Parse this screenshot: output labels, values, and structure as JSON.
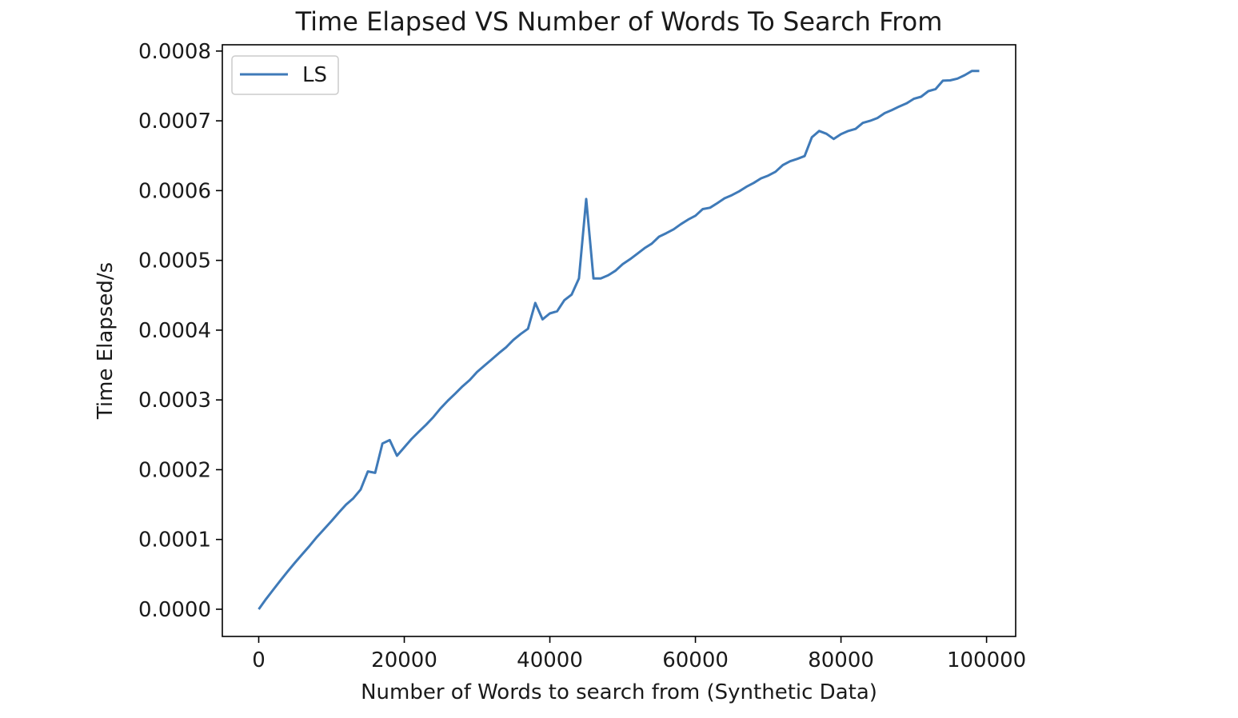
{
  "chart_data": {
    "type": "line",
    "title": "Time Elapsed VS Number of Words To Search From",
    "xlabel": "Number of Words to search from (Synthetic Data)",
    "ylabel": "Time Elapsed/s",
    "xlim": [
      -5000,
      104000
    ],
    "ylim": [
      -3.9e-05,
      0.000809
    ],
    "xticks": [
      0,
      20000,
      40000,
      60000,
      80000,
      100000
    ],
    "xtick_labels": [
      "0",
      "20000",
      "40000",
      "60000",
      "80000",
      "100000"
    ],
    "yticks": [
      0,
      0.0001,
      0.0002,
      0.0003,
      0.0004,
      0.0005,
      0.0006,
      0.0007,
      0.0008
    ],
    "ytick_labels": [
      "0.0000",
      "0.0001",
      "0.0002",
      "0.0003",
      "0.0004",
      "0.0005",
      "0.0006",
      "0.0007",
      "0.0008"
    ],
    "grid": false,
    "legend": {
      "position": "top-left",
      "entries": [
        "LS"
      ]
    },
    "colors": {
      "LS": "#3f7ab8"
    },
    "series": [
      {
        "name": "LS",
        "x": [
          0,
          1000,
          2000,
          3000,
          4000,
          5000,
          6000,
          7000,
          8000,
          9000,
          10000,
          11000,
          12000,
          13000,
          14000,
          15000,
          16000,
          17000,
          18000,
          19000,
          20000,
          21000,
          22000,
          23000,
          24000,
          25000,
          26000,
          27000,
          28000,
          29000,
          30000,
          31000,
          32000,
          33000,
          34000,
          35000,
          36000,
          37000,
          38000,
          39000,
          40000,
          41000,
          42000,
          43000,
          44000,
          45000,
          46000,
          47000,
          48000,
          49000,
          50000,
          51000,
          52000,
          53000,
          54000,
          55000,
          56000,
          57000,
          58000,
          59000,
          60000,
          61000,
          62000,
          63000,
          64000,
          65000,
          66000,
          67000,
          68000,
          69000,
          70000,
          71000,
          72000,
          73000,
          74000,
          75000,
          76000,
          77000,
          78000,
          79000,
          80000,
          81000,
          82000,
          83000,
          84000,
          85000,
          86000,
          87000,
          88000,
          89000,
          90000,
          91000,
          92000,
          93000,
          94000,
          95000,
          96000,
          97000,
          98000,
          99000
        ],
        "y": [
          0.0,
          1.45e-05,
          2.8e-05,
          4.15e-05,
          5.45e-05,
          6.7e-05,
          7.9e-05,
          9.1e-05,
          0.0001035,
          0.000115,
          0.0001265,
          0.0001385,
          0.00015,
          0.000159,
          0.0001715,
          0.0001975,
          0.0001955,
          0.0002375,
          0.0002425,
          0.00022,
          0.000232,
          0.000244,
          0.0002545,
          0.0002645,
          0.0002755,
          0.000288,
          0.000299,
          0.000309,
          0.0003195,
          0.0003285,
          0.00034,
          0.000349,
          0.000358,
          0.000367,
          0.0003755,
          0.000386,
          0.0003945,
          0.000402,
          0.000439,
          0.0004155,
          0.000424,
          0.000427,
          0.000443,
          0.000451,
          0.000474,
          0.000588,
          0.000474,
          0.000474,
          0.0004785,
          0.000485,
          0.0004945,
          0.0005015,
          0.0005095,
          0.0005175,
          0.000524,
          0.000534,
          0.000539,
          0.0005445,
          0.000552,
          0.0005585,
          0.000564,
          0.0005735,
          0.0005755,
          0.000582,
          0.000589,
          0.0005935,
          0.000599,
          0.0006055,
          0.000611,
          0.0006175,
          0.0006215,
          0.000627,
          0.0006365,
          0.000642,
          0.0006455,
          0.0006495,
          0.0006765,
          0.0006855,
          0.0006815,
          0.000674,
          0.000681,
          0.0006855,
          0.0006885,
          0.000697,
          0.0007,
          0.000704,
          0.000711,
          0.0007155,
          0.0007205,
          0.000725,
          0.0007315,
          0.0007345,
          0.0007425,
          0.0007455,
          0.0007575,
          0.000758,
          0.0007605,
          0.0007655,
          0.0007715,
          0.0007715
        ]
      }
    ]
  }
}
